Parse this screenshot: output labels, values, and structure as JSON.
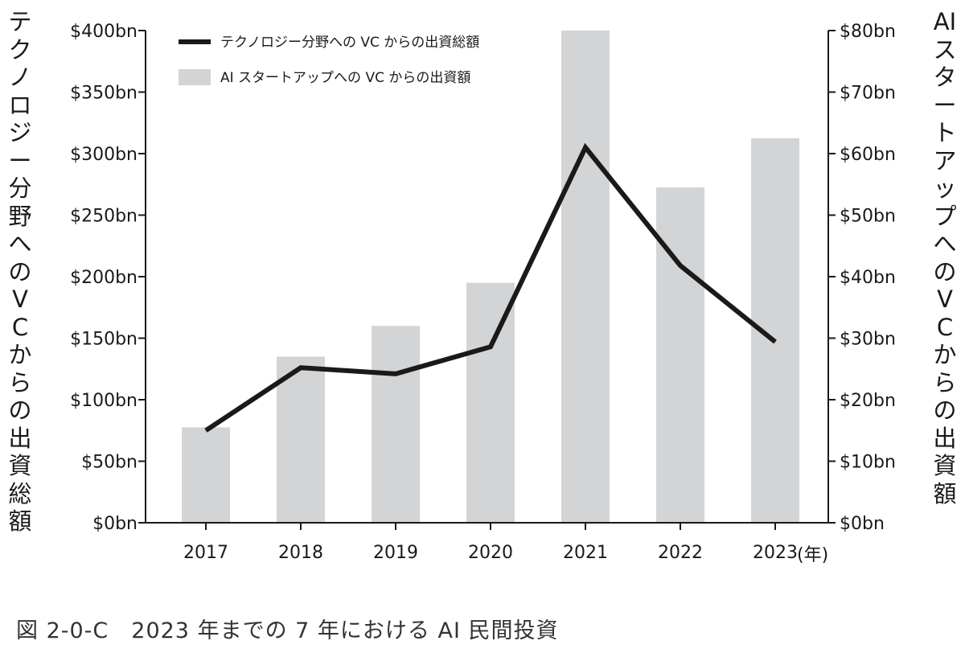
{
  "chart_data": {
    "type": "bar+line",
    "categories": [
      "2017",
      "2018",
      "2019",
      "2020",
      "2021",
      "2022",
      "2023"
    ],
    "x_unit": "(年)",
    "y_left": {
      "label": "テクノロジー分野へのVCからの出資総額",
      "ticks": [
        "$0bn",
        "$50bn",
        "$100bn",
        "$150bn",
        "$200bn",
        "$250bn",
        "$300bn",
        "$350bn",
        "$400bn"
      ],
      "range": [
        0,
        400
      ]
    },
    "y_right": {
      "label": "AIスタートアップへのVCからの出資額",
      "ticks": [
        "$0bn",
        "$10bn",
        "$20bn",
        "$30bn",
        "$40bn",
        "$50bn",
        "$60bn",
        "$70bn",
        "$80bn"
      ],
      "range": [
        0,
        80
      ]
    },
    "series": [
      {
        "name": "テクノロジー分野への VC からの出資総額",
        "kind": "line",
        "axis": "left",
        "color": "#1a1a1a",
        "values": [
          75,
          126,
          121,
          143,
          305,
          209,
          147
        ]
      },
      {
        "name": "AI スタートアップへの VC からの出資額",
        "kind": "bar",
        "axis": "right",
        "color": "#d3d4d6",
        "values": [
          15.5,
          27,
          32,
          39,
          80,
          54.5,
          62.5
        ]
      }
    ],
    "legend_position": "top-left"
  },
  "caption": "図 2-0-C　2023 年までの 7 年における AI 民間投資"
}
